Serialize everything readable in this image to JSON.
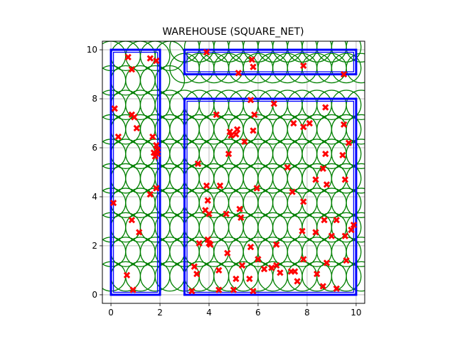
{
  "chart_data": {
    "type": "scatter",
    "title": "WAREHOUSE (SQUARE_NET)",
    "xlabel": "",
    "ylabel": "",
    "xlim": [
      -0.35,
      10.35
    ],
    "ylim": [
      -0.35,
      10.35
    ],
    "x_ticks": [
      0,
      2,
      4,
      6,
      8,
      10
    ],
    "y_ticks": [
      0,
      2,
      4,
      6,
      8,
      10
    ],
    "grid": true,
    "colors": {
      "shelves": "#0000ff",
      "coverage": "#008000",
      "points": "#ff0000",
      "grid": "#b0b0b0"
    },
    "shelves": [
      {
        "x0": 0,
        "y0": 0,
        "x1": 2,
        "y1": 10
      },
      {
        "x0": 3,
        "y0": 9,
        "x1": 10,
        "y1": 10
      },
      {
        "x0": 3,
        "y0": 0,
        "x1": 10,
        "y1": 8
      }
    ],
    "coverage": {
      "radius": 0.6,
      "xs": [
        0,
        0.6,
        1.2,
        1.8,
        2.4,
        3.0,
        3.6,
        4.2,
        4.8,
        5.4,
        6.0,
        6.6,
        7.2,
        7.8,
        8.4,
        9.0,
        9.6,
        10.2
      ],
      "ys": [
        0.75,
        1.75,
        2.75,
        3.75,
        4.75,
        5.75,
        6.75,
        7.75,
        8.75,
        9.75
      ],
      "left_x": [
        0,
        0.6,
        1.2,
        1.8
      ],
      "left_ys": [
        0.75,
        1.75,
        2.75,
        3.75,
        4.75,
        5.75,
        6.75,
        7.75,
        8.75,
        9.75
      ],
      "right_x": [
        3.0,
        3.6,
        4.2,
        4.8,
        5.4,
        6.0,
        6.6,
        7.2,
        7.8,
        8.4,
        9.0,
        9.6,
        10.2
      ],
      "right_ys": [
        0.75,
        1.75,
        2.75,
        3.75,
        4.75,
        5.75,
        6.75,
        7.75
      ],
      "top_ys": [
        9.25,
        10.1
      ],
      "gap_x": [
        2.4
      ],
      "gap_ys": [
        0.75,
        1.75,
        2.75,
        3.75,
        4.75,
        5.75,
        6.75,
        7.75,
        8.75,
        9.75
      ]
    },
    "points": [
      [
        0.7,
        9.7
      ],
      [
        0.85,
        9.2
      ],
      [
        1.6,
        9.65
      ],
      [
        1.85,
        9.55
      ],
      [
        0.15,
        7.6
      ],
      [
        0.3,
        6.45
      ],
      [
        0.85,
        7.35
      ],
      [
        0.95,
        7.25
      ],
      [
        1.05,
        6.8
      ],
      [
        1.7,
        6.45
      ],
      [
        1.85,
        6.1
      ],
      [
        1.9,
        5.9
      ],
      [
        1.75,
        5.8
      ],
      [
        1.8,
        5.65
      ],
      [
        1.9,
        5.75
      ],
      [
        1.85,
        4.35
      ],
      [
        1.6,
        4.1
      ],
      [
        0.1,
        3.75
      ],
      [
        0.85,
        3.05
      ],
      [
        1.15,
        2.55
      ],
      [
        0.65,
        0.8
      ],
      [
        0.9,
        0.2
      ],
      [
        3.9,
        9.9
      ],
      [
        5.2,
        9.05
      ],
      [
        5.75,
        9.6
      ],
      [
        5.8,
        9.3
      ],
      [
        7.85,
        9.35
      ],
      [
        9.5,
        9.0
      ],
      [
        4.3,
        7.35
      ],
      [
        5.7,
        7.95
      ],
      [
        5.85,
        7.35
      ],
      [
        6.65,
        7.8
      ],
      [
        7.45,
        7.0
      ],
      [
        7.85,
        6.85
      ],
      [
        8.1,
        7.0
      ],
      [
        8.75,
        7.65
      ],
      [
        9.5,
        6.95
      ],
      [
        9.7,
        6.2
      ],
      [
        4.85,
        6.65
      ],
      [
        4.9,
        6.5
      ],
      [
        5.15,
        6.75
      ],
      [
        5.1,
        6.55
      ],
      [
        5.45,
        6.25
      ],
      [
        5.8,
        6.7
      ],
      [
        4.8,
        5.75
      ],
      [
        3.55,
        5.35
      ],
      [
        5.95,
        4.35
      ],
      [
        3.9,
        4.45
      ],
      [
        4.45,
        4.45
      ],
      [
        7.2,
        5.2
      ],
      [
        8.65,
        5.15
      ],
      [
        8.75,
        5.75
      ],
      [
        8.35,
        4.7
      ],
      [
        8.8,
        4.5
      ],
      [
        9.45,
        5.7
      ],
      [
        9.55,
        4.7
      ],
      [
        7.4,
        4.2
      ],
      [
        7.85,
        3.8
      ],
      [
        3.95,
        3.85
      ],
      [
        3.85,
        3.45
      ],
      [
        4.0,
        3.3
      ],
      [
        4.7,
        3.3
      ],
      [
        5.25,
        3.5
      ],
      [
        5.3,
        3.15
      ],
      [
        3.6,
        2.1
      ],
      [
        3.95,
        2.25
      ],
      [
        4.0,
        2.1
      ],
      [
        4.05,
        2.05
      ],
      [
        4.75,
        1.7
      ],
      [
        5.7,
        1.95
      ],
      [
        6.0,
        1.45
      ],
      [
        6.75,
        2.05
      ],
      [
        7.8,
        2.6
      ],
      [
        8.35,
        2.55
      ],
      [
        8.7,
        3.05
      ],
      [
        9.2,
        3.05
      ],
      [
        9.0,
        2.4
      ],
      [
        9.55,
        2.4
      ],
      [
        9.8,
        2.65
      ],
      [
        9.9,
        2.85
      ],
      [
        9.6,
        1.4
      ],
      [
        3.4,
        1.15
      ],
      [
        3.5,
        0.85
      ],
      [
        3.3,
        0.15
      ],
      [
        4.4,
        1.0
      ],
      [
        4.4,
        0.2
      ],
      [
        5.0,
        0.2
      ],
      [
        5.1,
        0.65
      ],
      [
        5.35,
        1.2
      ],
      [
        5.65,
        0.65
      ],
      [
        5.8,
        0.15
      ],
      [
        6.25,
        1.05
      ],
      [
        6.55,
        1.1
      ],
      [
        6.75,
        1.2
      ],
      [
        6.9,
        0.9
      ],
      [
        7.35,
        0.95
      ],
      [
        7.5,
        0.95
      ],
      [
        7.6,
        0.55
      ],
      [
        7.85,
        1.45
      ],
      [
        8.4,
        0.85
      ],
      [
        8.65,
        0.35
      ],
      [
        8.8,
        1.3
      ],
      [
        9.2,
        0.25
      ]
    ]
  }
}
